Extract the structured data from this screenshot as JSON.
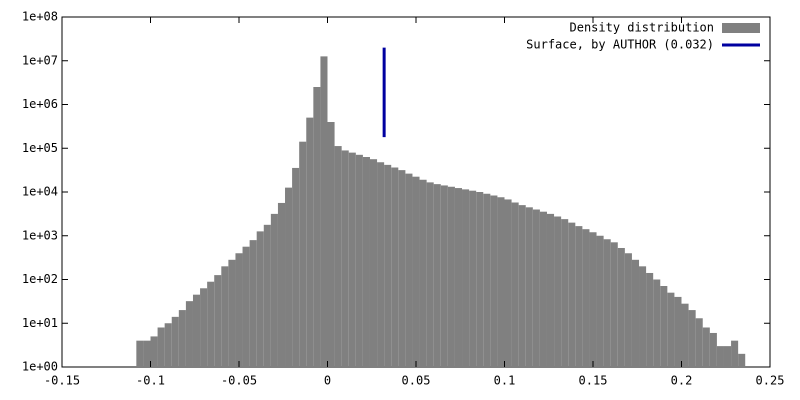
{
  "chart_data": {
    "type": "histogram",
    "bins": [
      -0.108,
      -0.104,
      -0.1,
      -0.096,
      -0.092,
      -0.088,
      -0.084,
      -0.08,
      -0.076,
      -0.072,
      -0.068,
      -0.064,
      -0.06,
      -0.056,
      -0.052,
      -0.048,
      -0.044,
      -0.04,
      -0.036,
      -0.032,
      -0.028,
      -0.024,
      -0.02,
      -0.016,
      -0.012,
      -0.008,
      -0.004,
      0,
      0.004,
      0.008,
      0.012,
      0.016,
      0.02,
      0.024,
      0.028,
      0.032,
      0.036,
      0.04,
      0.044,
      0.048,
      0.052,
      0.056,
      0.06,
      0.064,
      0.068,
      0.072,
      0.076,
      0.08,
      0.084,
      0.088,
      0.092,
      0.096,
      0.1,
      0.104,
      0.108,
      0.112,
      0.116,
      0.12,
      0.124,
      0.128,
      0.132,
      0.136,
      0.14,
      0.144,
      0.148,
      0.152,
      0.156,
      0.16,
      0.164,
      0.168,
      0.172,
      0.176,
      0.18,
      0.184,
      0.188,
      0.192,
      0.196,
      0.2,
      0.204,
      0.208,
      0.212,
      0.216,
      0.22,
      0.224,
      0.228,
      0.232,
      0.236
    ],
    "series": [
      {
        "name": "Density distribution",
        "color": "#808080",
        "values": [
          4,
          4,
          5,
          8,
          10,
          14,
          20,
          32,
          45,
          63,
          89,
          126,
          200,
          282,
          398,
          562,
          794,
          1259,
          1778,
          3162,
          5623,
          12589,
          35481,
          141254,
          501187,
          2511886,
          12589254,
          398107,
          112202,
          89125,
          79433,
          70795,
          63096,
          56234,
          47863,
          41687,
          36308,
          31623,
          26303,
          22387,
          19055,
          16596,
          15136,
          14125,
          13183,
          12303,
          11482,
          10715,
          10000,
          9120,
          8318,
          7586,
          6761,
          5754,
          5012,
          4467,
          3981,
          3548,
          3162,
          2754,
          2399,
          1995,
          1660,
          1413,
          1202,
          1000,
          832,
          708,
          525,
          398,
          282,
          200,
          141,
          100,
          71,
          50,
          40,
          28,
          20,
          13,
          8,
          6,
          3,
          3,
          4,
          2
        ]
      }
    ],
    "surface": {
      "name": "Surface, by AUTHOR (0.032)",
      "color": "#0000a0",
      "x": 0.032,
      "y": [
        180000,
        20000000
      ]
    },
    "xlim": [
      -0.15,
      0.25
    ],
    "xticks": [
      -0.15,
      -0.1,
      -0.05,
      0,
      0.05,
      0.1,
      0.15,
      0.2,
      0.25
    ],
    "ylim": [
      1,
      100000000
    ],
    "log_y": true,
    "yticks": [
      {
        "value": 1,
        "label": "1e+00"
      },
      {
        "value": 10,
        "label": "1e+01"
      },
      {
        "value": 100,
        "label": "1e+02"
      },
      {
        "value": 1000,
        "label": "1e+03"
      },
      {
        "value": 10000,
        "label": "1e+04"
      },
      {
        "value": 100000,
        "label": "1e+05"
      },
      {
        "value": 1000000,
        "label": "1e+06"
      },
      {
        "value": 10000000,
        "label": "1e+07"
      },
      {
        "value": 100000000,
        "label": "1e+08"
      }
    ],
    "legend": "top-right"
  }
}
